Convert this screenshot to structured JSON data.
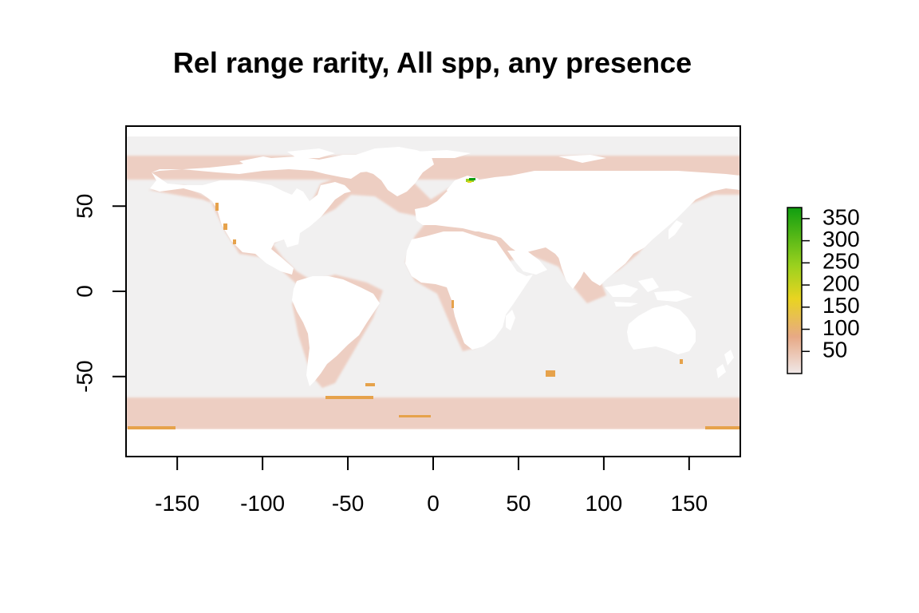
{
  "title": "Rel range rarity, All spp, any presence",
  "colors": {
    "background_ocean": "#f1f0f0",
    "land": "#ffffff",
    "low": "#f0e8e8",
    "mid": "#e7a986",
    "high_mid": "#e9d421",
    "high": "#109e10",
    "axis": "#000000"
  },
  "chart_data": {
    "type": "heatmap",
    "title": "Rel range rarity, All spp, any presence",
    "xlabel": "",
    "ylabel": "",
    "xlim": [
      -180,
      180
    ],
    "ylim": [
      -97,
      97
    ],
    "x_ticks": [
      -150,
      -100,
      -50,
      0,
      50,
      100,
      150
    ],
    "y_ticks": [
      -50,
      0,
      50
    ],
    "x_tick_labels": [
      "-150",
      "-100",
      "-50",
      "0",
      "50",
      "100",
      "150"
    ],
    "y_tick_labels": [
      "-50",
      "0",
      "50"
    ],
    "legend": {
      "placement": "right",
      "range": [
        0,
        375
      ],
      "ticks": [
        50,
        100,
        150,
        200,
        250,
        300,
        350
      ],
      "tick_labels": [
        "50",
        "100",
        "150",
        "200",
        "250",
        "300",
        "350"
      ],
      "colors": [
        "#f0e8e8",
        "#e7a986",
        "#e9d421",
        "#9bd11e",
        "#109e10"
      ]
    }
  }
}
